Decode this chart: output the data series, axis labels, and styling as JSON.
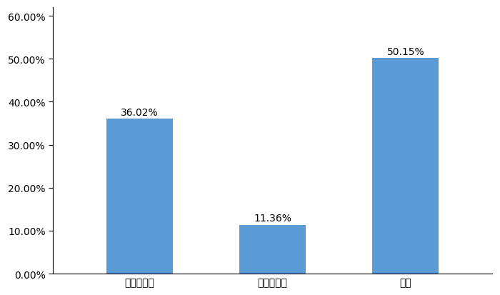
{
  "categories": [
    "有单边货源",
    "有双边货源",
    "没有"
  ],
  "values": [
    0.3602,
    0.1136,
    0.5015
  ],
  "labels": [
    "36.02%",
    "11.36%",
    "50.15%"
  ],
  "bar_color": "#5B9BD5",
  "ylim": [
    0,
    0.62
  ],
  "yticks": [
    0.0,
    0.1,
    0.2,
    0.3,
    0.4,
    0.5,
    0.6
  ],
  "ytick_labels": [
    "0.00%",
    "10.00%",
    "20.00%",
    "30.00%",
    "40.00%",
    "50.00%",
    "60.00%"
  ],
  "background_color": "#ffffff",
  "bar_width": 0.5,
  "label_fontsize": 10,
  "tick_fontsize": 10
}
